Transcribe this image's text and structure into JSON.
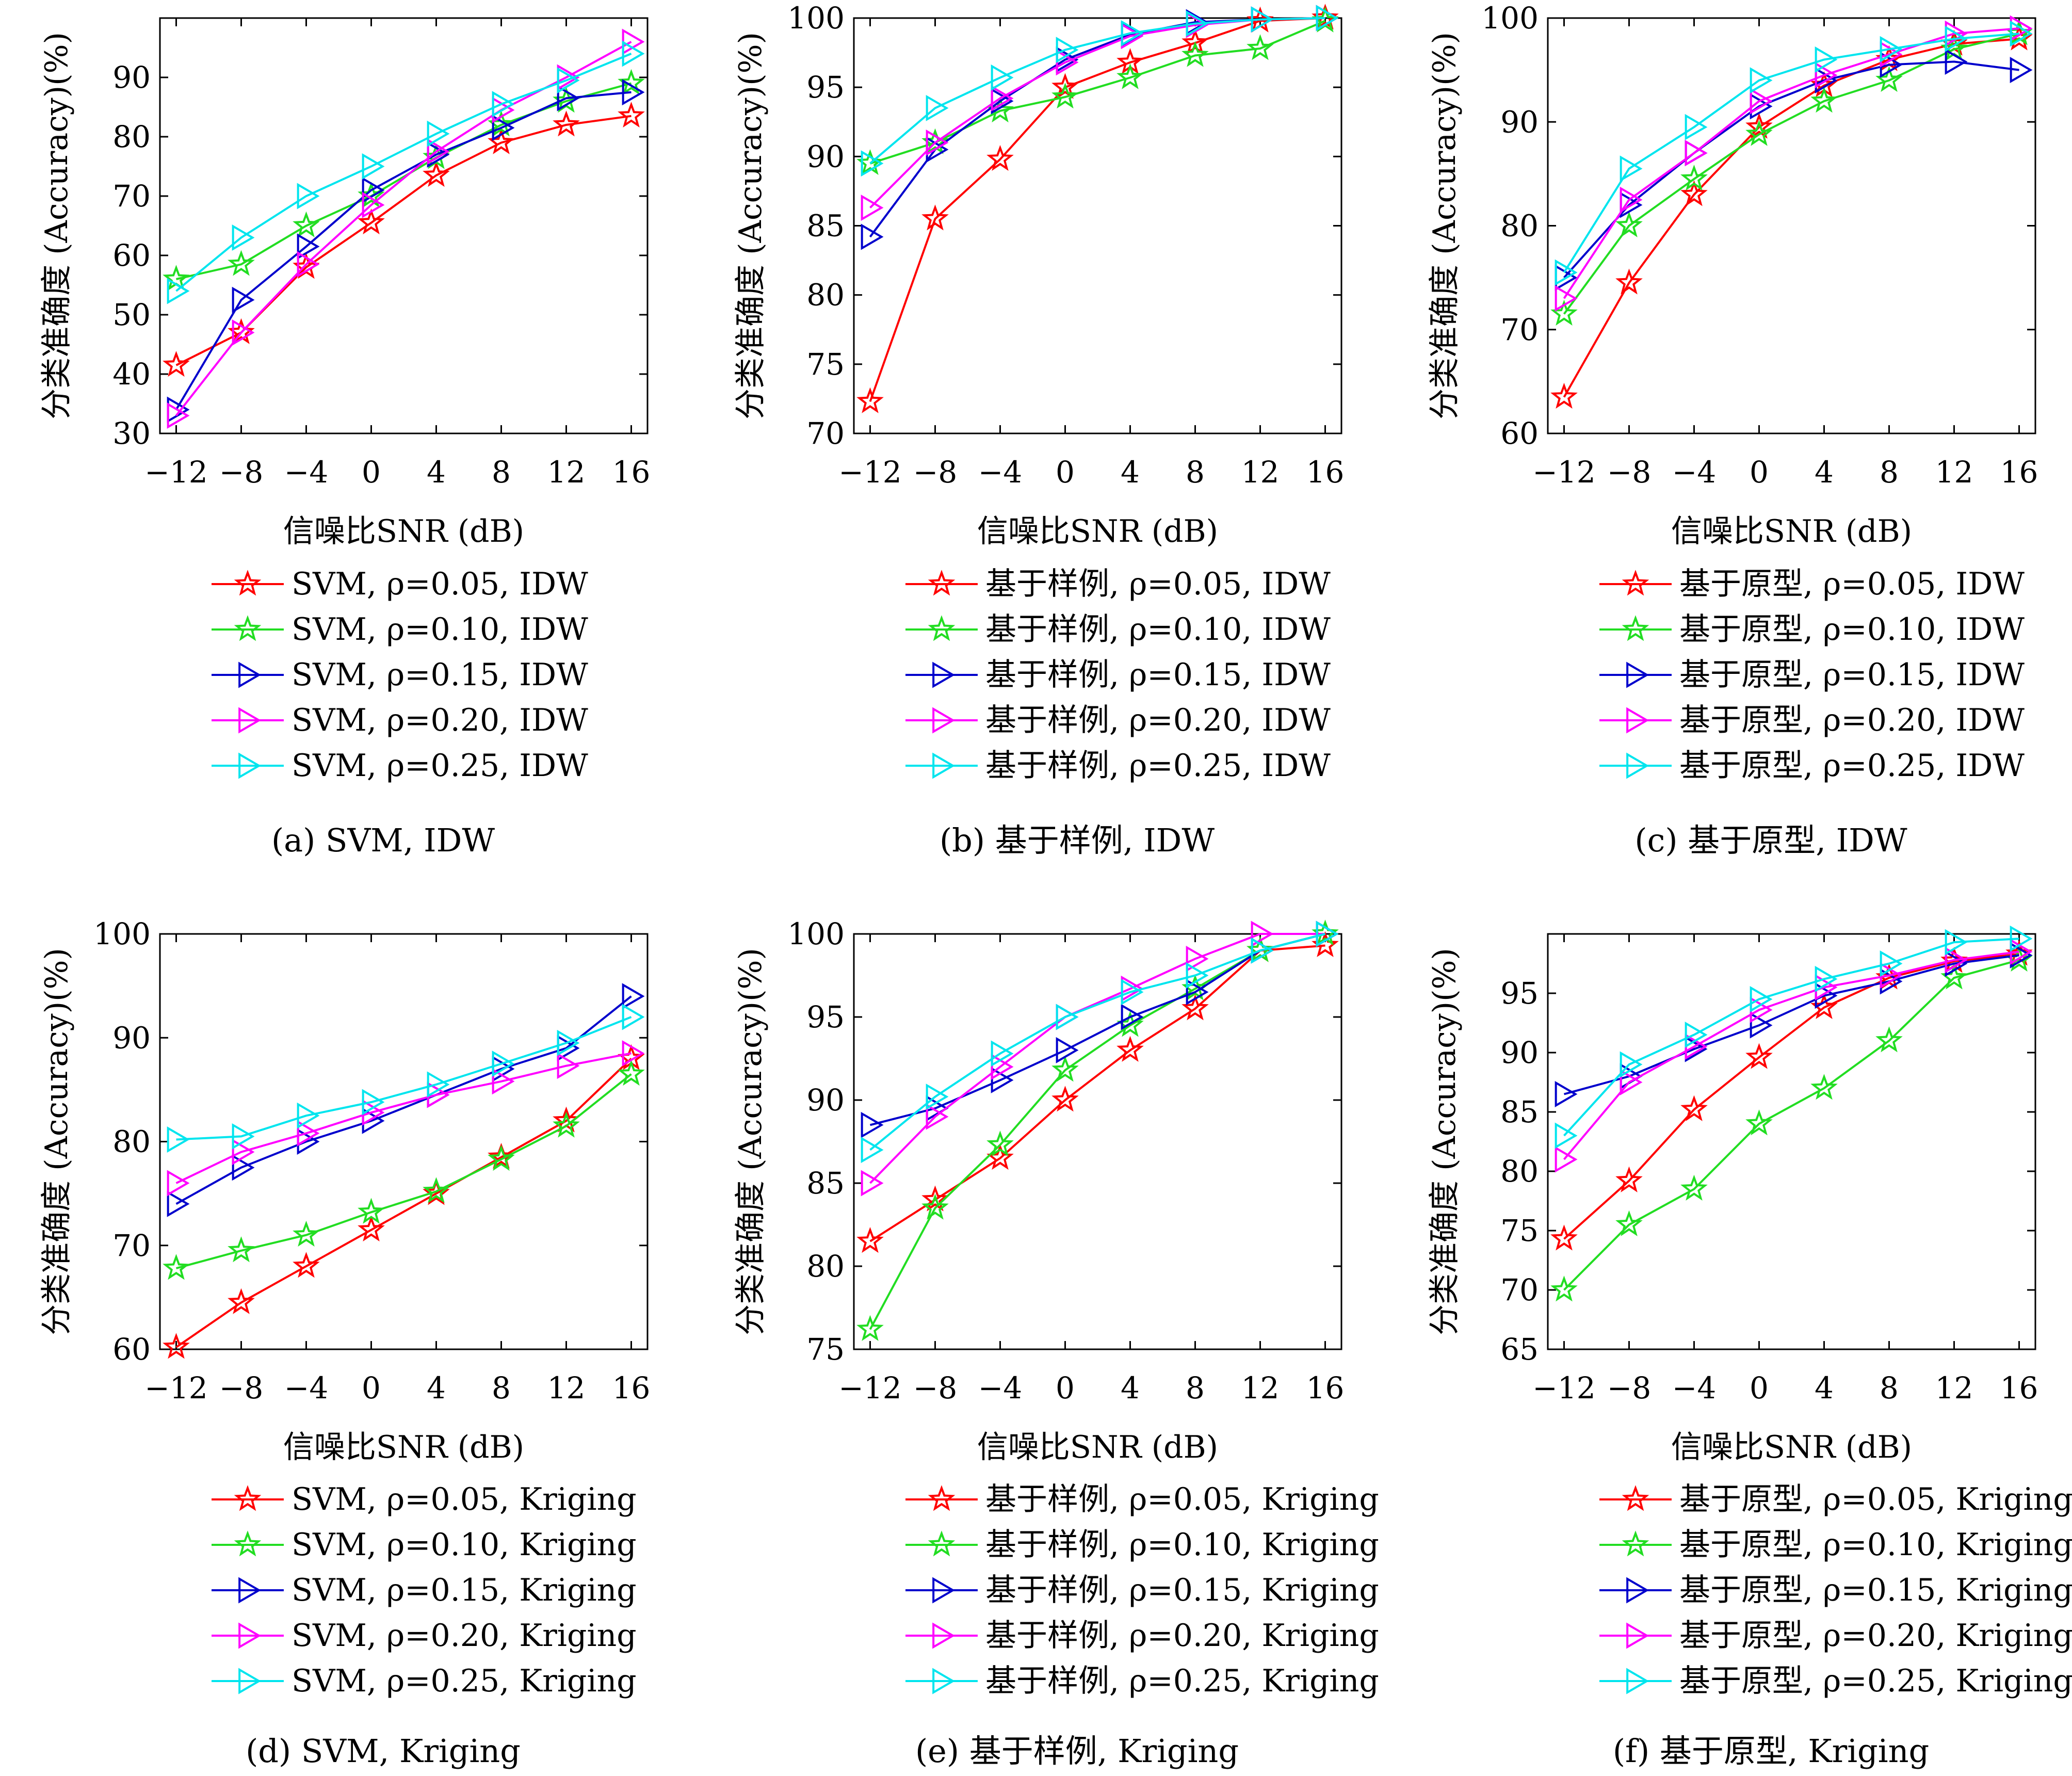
{
  "colors": {
    "series": [
      "#ff0000",
      "#22dd22",
      "#0000cc",
      "#ff00ff",
      "#00e5ee"
    ]
  },
  "markers": [
    "star",
    "star",
    "triangle-right",
    "triangle-right",
    "triangle-right"
  ],
  "chart_data": [
    {
      "type": "line",
      "caption": "(a) SVM, IDW",
      "xlabel": "信噪比SNR (dB)",
      "ylabel": "分类准确度 (Accuracy)(%)",
      "x": [
        -12,
        -8,
        -4,
        0,
        4,
        8,
        12,
        16
      ],
      "xticks": [
        "−12",
        "−8",
        "−4",
        "0",
        "4",
        "8",
        "12",
        "16"
      ],
      "ylim": [
        30,
        100
      ],
      "yticks": [
        30,
        40,
        50,
        60,
        70,
        80,
        90
      ],
      "series": [
        {
          "name": "SVM, ρ=0.05, IDW",
          "values": [
            41.5,
            47,
            58,
            65.5,
            73.5,
            79,
            82,
            83.5
          ]
        },
        {
          "name": "SVM, ρ=0.10, IDW",
          "values": [
            56,
            58.5,
            65,
            70,
            76.5,
            82,
            86,
            89
          ]
        },
        {
          "name": "SVM, ρ=0.15, IDW",
          "values": [
            34,
            52.5,
            61.5,
            71,
            77,
            81.5,
            86.5,
            87.5
          ]
        },
        {
          "name": "SVM, ρ=0.20, IDW",
          "values": [
            33,
            47,
            58.5,
            68.5,
            77.5,
            84.5,
            90,
            96
          ]
        },
        {
          "name": "SVM, ρ=0.25, IDW",
          "values": [
            54,
            63,
            70,
            75,
            80.5,
            85.5,
            89.5,
            94
          ]
        }
      ]
    },
    {
      "type": "line",
      "caption": "(b) 基于样例, IDW",
      "xlabel": "信噪比SNR (dB)",
      "ylabel": "分类准确度 (Accuracy)(%)",
      "x": [
        -12,
        -8,
        -4,
        0,
        4,
        8,
        12,
        16
      ],
      "xticks": [
        "−12",
        "−8",
        "−4",
        "0",
        "4",
        "8",
        "12",
        "16"
      ],
      "ylim": [
        70,
        100
      ],
      "yticks": [
        70,
        75,
        80,
        85,
        90,
        95,
        100
      ],
      "series": [
        {
          "name": "基于样例, ρ=0.05, IDW",
          "values": [
            72.3,
            85.5,
            89.8,
            95,
            96.8,
            98.2,
            99.8,
            100
          ]
        },
        {
          "name": "基于样例, ρ=0.10, IDW",
          "values": [
            89.5,
            91,
            93.3,
            94.3,
            95.7,
            97.3,
            97.8,
            99.8
          ]
        },
        {
          "name": "基于样例, ρ=0.15, IDW",
          "values": [
            84.2,
            90.5,
            94,
            97,
            98.8,
            99.7,
            99.9,
            100
          ]
        },
        {
          "name": "基于样例, ρ=0.20, IDW",
          "values": [
            86.3,
            91,
            94.2,
            96.8,
            98.7,
            99.5,
            99.9,
            100
          ]
        },
        {
          "name": "基于样例, ρ=0.25, IDW",
          "values": [
            89.5,
            93.5,
            95.7,
            97.7,
            98.9,
            99.6,
            99.9,
            100
          ]
        }
      ]
    },
    {
      "type": "line",
      "caption": "(c) 基于原型, IDW",
      "xlabel": "信噪比SNR (dB)",
      "ylabel": "分类准确度 (Accuracy)(%)",
      "x": [
        -12,
        -8,
        -4,
        0,
        4,
        8,
        12,
        16
      ],
      "xticks": [
        "−12",
        "−8",
        "−4",
        "0",
        "4",
        "8",
        "12",
        "16"
      ],
      "ylim": [
        60,
        100
      ],
      "yticks": [
        60,
        70,
        80,
        90,
        100
      ],
      "series": [
        {
          "name": "基于原型, ρ=0.05, IDW",
          "values": [
            63.5,
            74.5,
            83,
            89.5,
            93.5,
            96,
            97.5,
            98
          ]
        },
        {
          "name": "基于原型, ρ=0.10, IDW",
          "values": [
            71.5,
            80,
            84.5,
            88.8,
            92,
            94,
            97,
            98.5
          ]
        },
        {
          "name": "基于原型, ρ=0.15, IDW",
          "values": [
            75,
            82,
            87,
            91.5,
            94,
            95.5,
            95.8,
            95
          ]
        },
        {
          "name": "基于原型, ρ=0.20, IDW",
          "values": [
            73,
            82.5,
            87,
            92,
            94.5,
            96.5,
            98.5,
            99
          ]
        },
        {
          "name": "基于原型, ρ=0.25, IDW",
          "values": [
            75.5,
            85.5,
            89.5,
            94,
            96,
            97,
            98,
            98.5
          ]
        }
      ]
    },
    {
      "type": "line",
      "caption": "(d) SVM, Kriging",
      "xlabel": "信噪比SNR (dB)",
      "ylabel": "分类准确度 (Accuracy)(%)",
      "x": [
        -12,
        -8,
        -4,
        0,
        4,
        8,
        12,
        16
      ],
      "xticks": [
        "−12",
        "−8",
        "−4",
        "0",
        "4",
        "8",
        "12",
        "16"
      ],
      "ylim": [
        60,
        100
      ],
      "yticks": [
        60,
        70,
        80,
        90,
        100
      ],
      "series": [
        {
          "name": "SVM, ρ=0.05, Kriging",
          "values": [
            60.2,
            64.5,
            68,
            71.5,
            75,
            78.5,
            82,
            88
          ]
        },
        {
          "name": "SVM, ρ=0.10, Kriging",
          "values": [
            67.8,
            69.5,
            71,
            73.2,
            75.2,
            78.3,
            81.5,
            86.5
          ]
        },
        {
          "name": "SVM, ρ=0.15, Kriging",
          "values": [
            74,
            77.5,
            80,
            82,
            84.5,
            87,
            89,
            94
          ]
        },
        {
          "name": "SVM, ρ=0.20, Kriging",
          "values": [
            76,
            79,
            80.8,
            82.8,
            84.5,
            85.8,
            87.3,
            88.5
          ]
        },
        {
          "name": "SVM, ρ=0.25, Kriging",
          "values": [
            80.2,
            80.5,
            82.5,
            83.8,
            85.5,
            87.5,
            89.5,
            92
          ]
        }
      ]
    },
    {
      "type": "line",
      "caption": "(e) 基于样例, Kriging",
      "xlabel": "信噪比SNR (dB)",
      "ylabel": "分类准确度 (Accuracy)(%)",
      "x": [
        -12,
        -8,
        -4,
        0,
        4,
        8,
        12,
        16
      ],
      "xticks": [
        "−12",
        "−8",
        "−4",
        "0",
        "4",
        "8",
        "12",
        "16"
      ],
      "ylim": [
        75,
        100
      ],
      "yticks": [
        75,
        80,
        85,
        90,
        95,
        100
      ],
      "series": [
        {
          "name": "基于样例, ρ=0.05, Kriging",
          "values": [
            81.5,
            84,
            86.5,
            90,
            93,
            95.5,
            99,
            99.3
          ]
        },
        {
          "name": "基于样例, ρ=0.10, Kriging",
          "values": [
            76.2,
            83.5,
            87.3,
            91.8,
            94.5,
            96.7,
            99,
            100
          ]
        },
        {
          "name": "基于样例, ρ=0.15, Kriging",
          "values": [
            88.5,
            89.5,
            91.2,
            93,
            95,
            96.5,
            99,
            100
          ]
        },
        {
          "name": "基于样例, ρ=0.20, Kriging",
          "values": [
            85,
            89,
            92,
            95,
            96.7,
            98.5,
            100,
            100
          ]
        },
        {
          "name": "基于样例, ρ=0.25, Kriging",
          "values": [
            87,
            90.2,
            92.8,
            95,
            96.5,
            97.5,
            99,
            100
          ]
        }
      ]
    },
    {
      "type": "line",
      "caption": "(f) 基于原型, Kriging",
      "xlabel": "信噪比SNR (dB)",
      "ylabel": "分类准确度 (Accuracy)(%)",
      "x": [
        -12,
        -8,
        -4,
        0,
        4,
        8,
        12,
        16
      ],
      "xticks": [
        "−12",
        "−8",
        "−4",
        "0",
        "4",
        "8",
        "12",
        "16"
      ],
      "ylim": [
        65,
        100
      ],
      "yticks": [
        65,
        70,
        75,
        80,
        85,
        90,
        95
      ],
      "series": [
        {
          "name": "基于原型, ρ=0.05, Kriging",
          "values": [
            74.3,
            79.2,
            85.2,
            89.6,
            93.8,
            96.3,
            97.7,
            98.3
          ]
        },
        {
          "name": "基于原型, ρ=0.10, Kriging",
          "values": [
            70,
            75.5,
            78.5,
            84,
            87,
            91,
            96.3,
            97.8
          ]
        },
        {
          "name": "基于原型, ρ=0.15, Kriging",
          "values": [
            86.5,
            88,
            90.3,
            92.3,
            94.8,
            96,
            97.5,
            98.2
          ]
        },
        {
          "name": "基于原型, ρ=0.20, Kriging",
          "values": [
            81,
            87.5,
            90.5,
            93.6,
            95.5,
            96.5,
            97.8,
            98.5
          ]
        },
        {
          "name": "基于原型, ρ=0.25, Kriging",
          "values": [
            83,
            89,
            91.5,
            94.5,
            96.2,
            97.5,
            99.3,
            99.6
          ]
        }
      ]
    }
  ]
}
